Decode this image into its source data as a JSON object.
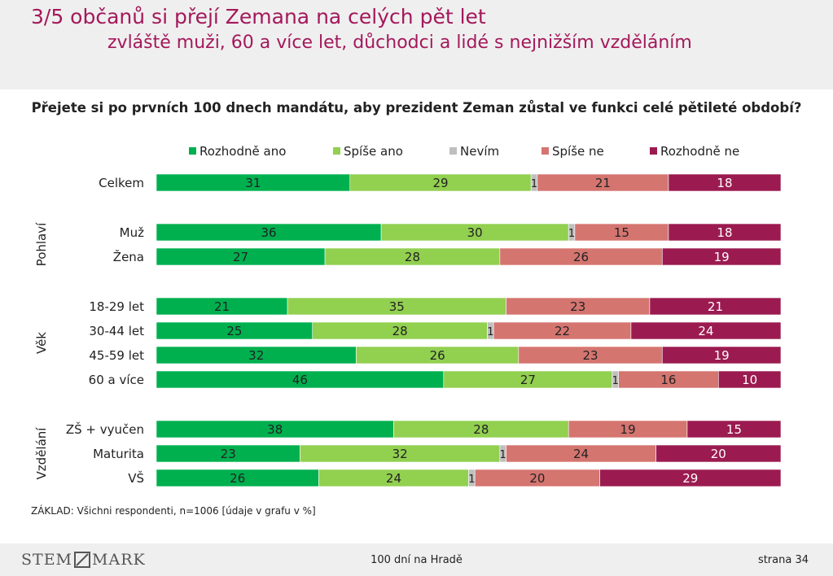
{
  "header": {
    "title": "3/5 občanů si přejí Zemana na celých pět let",
    "subtitle": "zvláště muži, 60 a více let, důchodci a lidé s nejnižším vzděláním"
  },
  "footer": {
    "logo_left": "STEM",
    "logo_right": "MARK",
    "center": "100 dní na Hradě",
    "page": "strana 34"
  },
  "base_note": "ZÁKLAD: Všichni respondenti, n=1006 [údaje v grafu v %]",
  "colors": {
    "rozhodne_ano": "#00b04f",
    "spise_ano": "#92d050",
    "nevim": "#bfbfbf",
    "spise_ne": "#d57570",
    "rozhodne_ne": "#9b1b50"
  },
  "chart_data": {
    "type": "bar",
    "orientation": "horizontal-stacked-100",
    "title": "Přejete si po prvních 100 dnech mandátu, aby prezident Zeman zůstal ve funkci celé pětileté období?",
    "legend_position": "top",
    "series": [
      {
        "name": "Rozhodně ano",
        "color_key": "rozhodne_ano"
      },
      {
        "name": "Spíše ano",
        "color_key": "spise_ano"
      },
      {
        "name": "Nevím",
        "color_key": "nevim"
      },
      {
        "name": "Spíše ne",
        "color_key": "spise_ne"
      },
      {
        "name": "Rozhodně ne",
        "color_key": "rozhodne_ne"
      }
    ],
    "groups": [
      {
        "label": "",
        "rows": [
          {
            "category": "Celkem",
            "values": [
              31,
              29,
              1,
              21,
              18
            ]
          }
        ]
      },
      {
        "label": "Pohlaví",
        "rows": [
          {
            "category": "Muž",
            "values": [
              36,
              30,
              1,
              15,
              18
            ]
          },
          {
            "category": "Žena",
            "values": [
              27,
              28,
              0,
              26,
              19
            ]
          }
        ]
      },
      {
        "label": "Věk",
        "rows": [
          {
            "category": "18-29 let",
            "values": [
              21,
              35,
              0,
              23,
              21
            ]
          },
          {
            "category": "30-44 let",
            "values": [
              25,
              28,
              1,
              22,
              24
            ]
          },
          {
            "category": "45-59 let",
            "values": [
              32,
              26,
              0,
              23,
              19
            ]
          },
          {
            "category": "60 a více",
            "values": [
              46,
              27,
              1,
              16,
              10
            ]
          }
        ]
      },
      {
        "label": "Vzdělání",
        "rows": [
          {
            "category": "ZŠ + vyučen",
            "values": [
              38,
              28,
              0,
              19,
              15
            ]
          },
          {
            "category": "Maturita",
            "values": [
              23,
              32,
              1,
              24,
              20
            ]
          },
          {
            "category": "VŠ",
            "values": [
              26,
              24,
              1,
              20,
              29
            ]
          }
        ]
      }
    ]
  }
}
